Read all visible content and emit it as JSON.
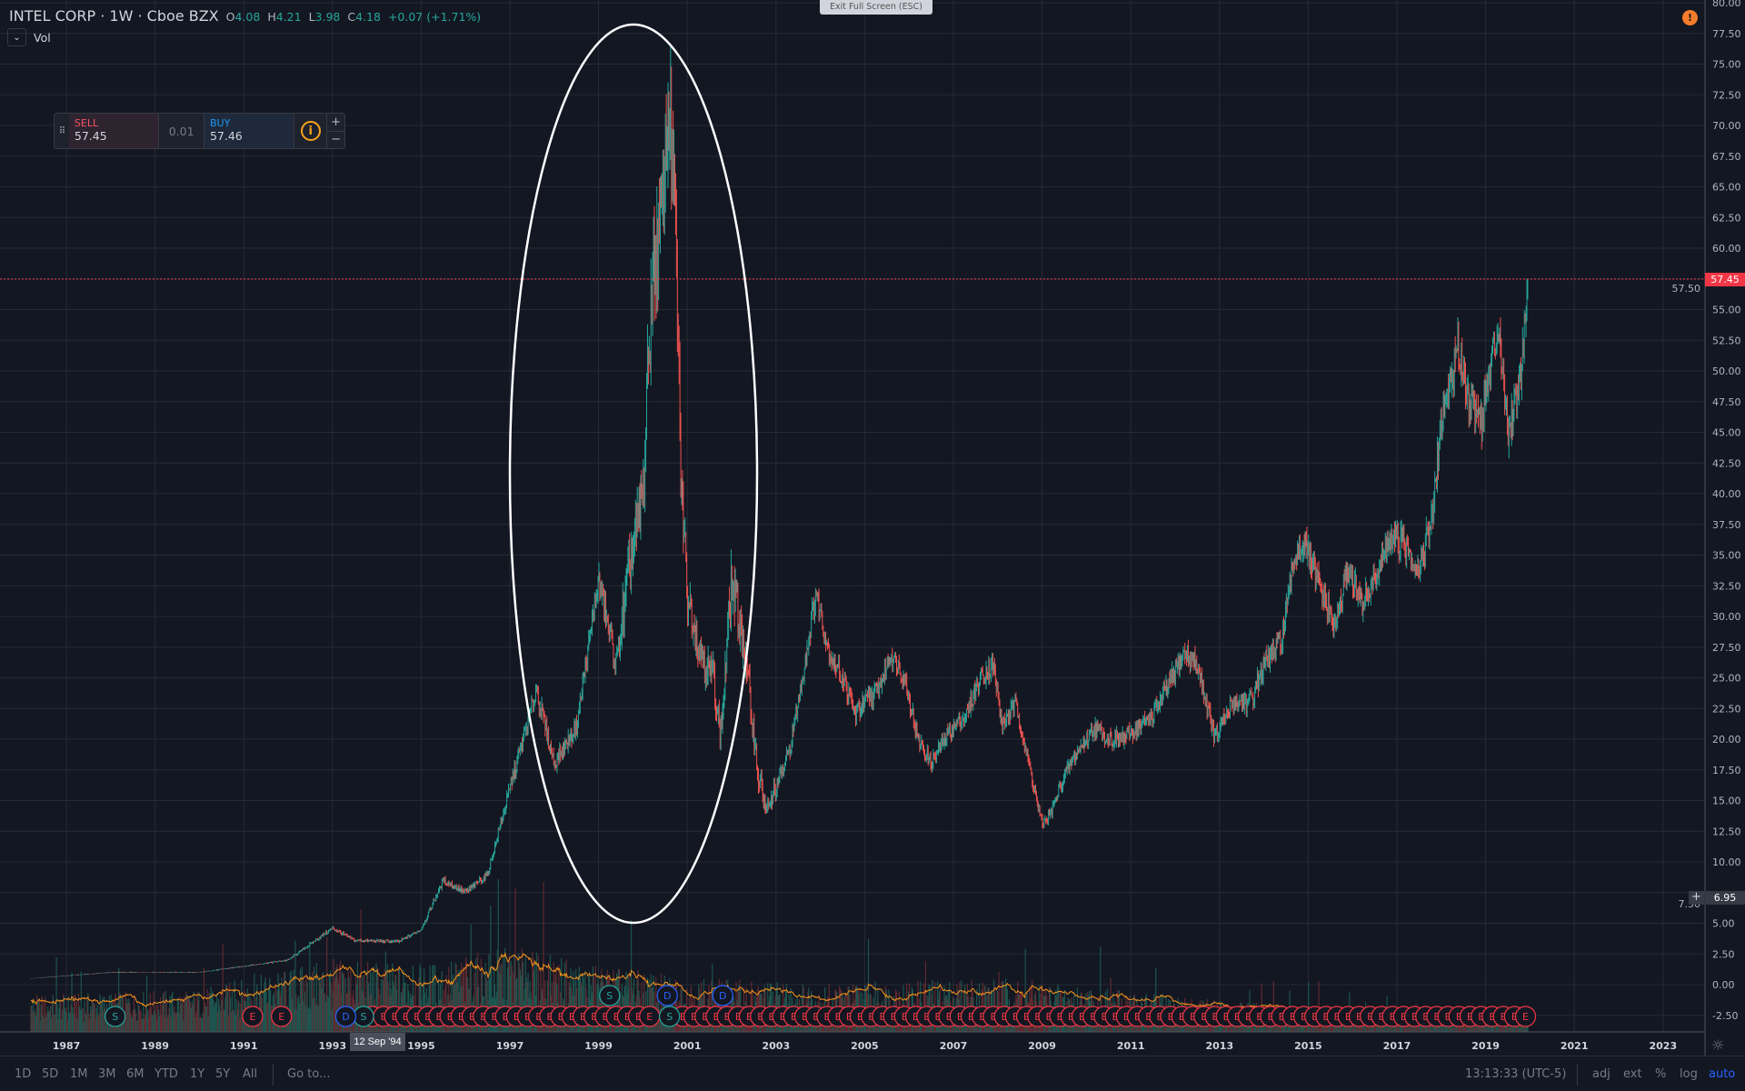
{
  "header": {
    "symbol": "INTEL CORP",
    "sep1": "·",
    "interval": "1W",
    "sep2": "·",
    "exchange": "Cboe BZX",
    "o_label": "O",
    "o": "4.08",
    "h_label": "H",
    "h": "4.21",
    "l_label": "L",
    "l": "3.98",
    "c_label": "C",
    "c": "4.18",
    "change": "+0.07 (+1.71%)"
  },
  "volume_legend": {
    "label": "Vol",
    "chevron": "chevron-down-icon"
  },
  "trade_panel": {
    "sell_label": "SELL",
    "sell_price": "57.45",
    "spread": "0.01",
    "buy_label": "BUY",
    "buy_price": "57.46",
    "info": "i",
    "plus": "+",
    "minus": "−"
  },
  "exit_fullscreen": "Exit Full Screen (ESC)",
  "alert_icon": "!",
  "crosshair": {
    "time": "12 Sep '94",
    "price": "6.95",
    "plus": "+"
  },
  "bottom_bar": {
    "ranges": [
      "1D",
      "5D",
      "1M",
      "3M",
      "6M",
      "YTD",
      "1Y",
      "5Y",
      "All"
    ],
    "goto": "Go to...",
    "clock": "13:13:33 (UTC-5)",
    "adj": "adj",
    "ext": "ext",
    "percent": "%",
    "log": "log",
    "auto": "auto"
  },
  "colors": {
    "bg": "#131722",
    "up": "#26a69a",
    "down": "#ef5350",
    "last_price": "#f23645",
    "volume_ma": "#f7931a",
    "dividend": "#2962ff"
  },
  "chart_data": {
    "type": "candlestick",
    "title": "INTEL CORP · 1W · Cboe BZX",
    "ylim": [
      -2.5,
      80
    ],
    "y_ticks": [
      "80.00",
      "77.50",
      "75.00",
      "72.50",
      "70.00",
      "67.50",
      "65.00",
      "62.50",
      "60.00",
      "57.50",
      "55.00",
      "52.50",
      "50.00",
      "47.50",
      "45.00",
      "42.50",
      "40.00",
      "37.50",
      "35.00",
      "32.50",
      "30.00",
      "27.50",
      "25.00",
      "22.50",
      "20.00",
      "17.50",
      "15.00",
      "12.50",
      "10.00",
      "7.50",
      "5.00",
      "2.50",
      "0.00",
      "-2.50"
    ],
    "x_ticks": [
      "1987",
      "1989",
      "1991",
      "1993",
      "1995",
      "1997",
      "1999",
      "2001",
      "2003",
      "2005",
      "2007",
      "2009",
      "2011",
      "2013",
      "2015",
      "2017",
      "2019",
      "2021",
      "2023"
    ],
    "last_price": 57.45,
    "approx_close": [
      [
        1986.2,
        0.5
      ],
      [
        1988,
        1.0
      ],
      [
        1990,
        1.0
      ],
      [
        1991,
        1.5
      ],
      [
        1992,
        2.0
      ],
      [
        1993,
        4.6
      ],
      [
        1993.5,
        3.6
      ],
      [
        1994.5,
        3.5
      ],
      [
        1995,
        4.5
      ],
      [
        1995.5,
        8.5
      ],
      [
        1996,
        7.5
      ],
      [
        1996.5,
        9
      ],
      [
        1997,
        16
      ],
      [
        1997.3,
        20
      ],
      [
        1997.6,
        24
      ],
      [
        1998,
        18
      ],
      [
        1998.5,
        21
      ],
      [
        1999,
        33
      ],
      [
        1999.4,
        26
      ],
      [
        1999.7,
        34
      ],
      [
        2000,
        40
      ],
      [
        2000.2,
        57
      ],
      [
        2000.4,
        62
      ],
      [
        2000.6,
        72
      ],
      [
        2000.75,
        60
      ],
      [
        2000.85,
        42
      ],
      [
        2001,
        32
      ],
      [
        2001.3,
        27
      ],
      [
        2001.6,
        25
      ],
      [
        2001.75,
        20
      ],
      [
        2002,
        33
      ],
      [
        2002.3,
        27
      ],
      [
        2002.6,
        17
      ],
      [
        2002.8,
        14
      ],
      [
        2003,
        16
      ],
      [
        2003.3,
        19
      ],
      [
        2003.6,
        25
      ],
      [
        2003.9,
        32
      ],
      [
        2004.2,
        27
      ],
      [
        2004.5,
        25
      ],
      [
        2004.8,
        22
      ],
      [
        2005,
        23
      ],
      [
        2005.3,
        24
      ],
      [
        2005.6,
        27
      ],
      [
        2005.9,
        25
      ],
      [
        2006.2,
        20
      ],
      [
        2006.5,
        18
      ],
      [
        2006.8,
        20
      ],
      [
        2007,
        21
      ],
      [
        2007.3,
        22
      ],
      [
        2007.6,
        25
      ],
      [
        2007.9,
        26
      ],
      [
        2008.1,
        21
      ],
      [
        2008.4,
        23
      ],
      [
        2008.7,
        18
      ],
      [
        2009,
        13
      ],
      [
        2009.2,
        14
      ],
      [
        2009.5,
        17
      ],
      [
        2009.8,
        19
      ],
      [
        2010.2,
        21
      ],
      [
        2010.5,
        20
      ],
      [
        2010.8,
        20
      ],
      [
        2011.2,
        21
      ],
      [
        2011.5,
        22
      ],
      [
        2011.8,
        24
      ],
      [
        2012.2,
        27
      ],
      [
        2012.5,
        26
      ],
      [
        2012.9,
        20
      ],
      [
        2013.3,
        23
      ],
      [
        2013.7,
        23
      ],
      [
        2014,
        26
      ],
      [
        2014.4,
        28
      ],
      [
        2014.7,
        35
      ],
      [
        2014.9,
        36
      ],
      [
        2015.3,
        32
      ],
      [
        2015.6,
        29
      ],
      [
        2015.9,
        34
      ],
      [
        2016.2,
        31
      ],
      [
        2016.5,
        33
      ],
      [
        2016.8,
        36
      ],
      [
        2017.1,
        36
      ],
      [
        2017.5,
        34
      ],
      [
        2017.8,
        38
      ],
      [
        2018,
        46
      ],
      [
        2018.4,
        52
      ],
      [
        2018.6,
        48
      ],
      [
        2018.9,
        46
      ],
      [
        2019.1,
        50
      ],
      [
        2019.3,
        54
      ],
      [
        2019.5,
        45
      ],
      [
        2019.8,
        50
      ],
      [
        2019.95,
        57.5
      ]
    ],
    "relative_volume_by_year": [
      [
        1986,
        0.3
      ],
      [
        1990,
        0.35
      ],
      [
        1993,
        0.6
      ],
      [
        1995,
        0.55
      ],
      [
        1997,
        0.7
      ],
      [
        1999,
        0.55
      ],
      [
        2001,
        0.45
      ],
      [
        2004,
        0.4
      ],
      [
        2008,
        0.45
      ],
      [
        2012,
        0.3
      ],
      [
        2015,
        0.2
      ],
      [
        2018,
        0.15
      ],
      [
        2020,
        0.12
      ]
    ],
    "events": [
      {
        "type": "S",
        "label": "S",
        "t": 1988.1
      },
      {
        "type": "E",
        "label": "E",
        "t": 1991.2
      },
      {
        "type": "E",
        "label": "E",
        "t": 1991.85
      },
      {
        "type": "S",
        "label": "S",
        "t": 1999.25,
        "row": 2
      },
      {
        "type": "D",
        "label": "D",
        "t": 2000.55,
        "row": 2
      },
      {
        "type": "D",
        "label": "D",
        "t": 2001.8,
        "row": 2
      },
      {
        "type": "S",
        "label": "S",
        "t": 1993.7
      },
      {
        "type": "D",
        "label": "D",
        "t": 1993.3
      },
      {
        "type": "S",
        "label": "S",
        "t": 2000.6
      }
    ],
    "earnings_quarterly": {
      "label": "E",
      "from": 1993.4,
      "to": 2019.9
    }
  }
}
